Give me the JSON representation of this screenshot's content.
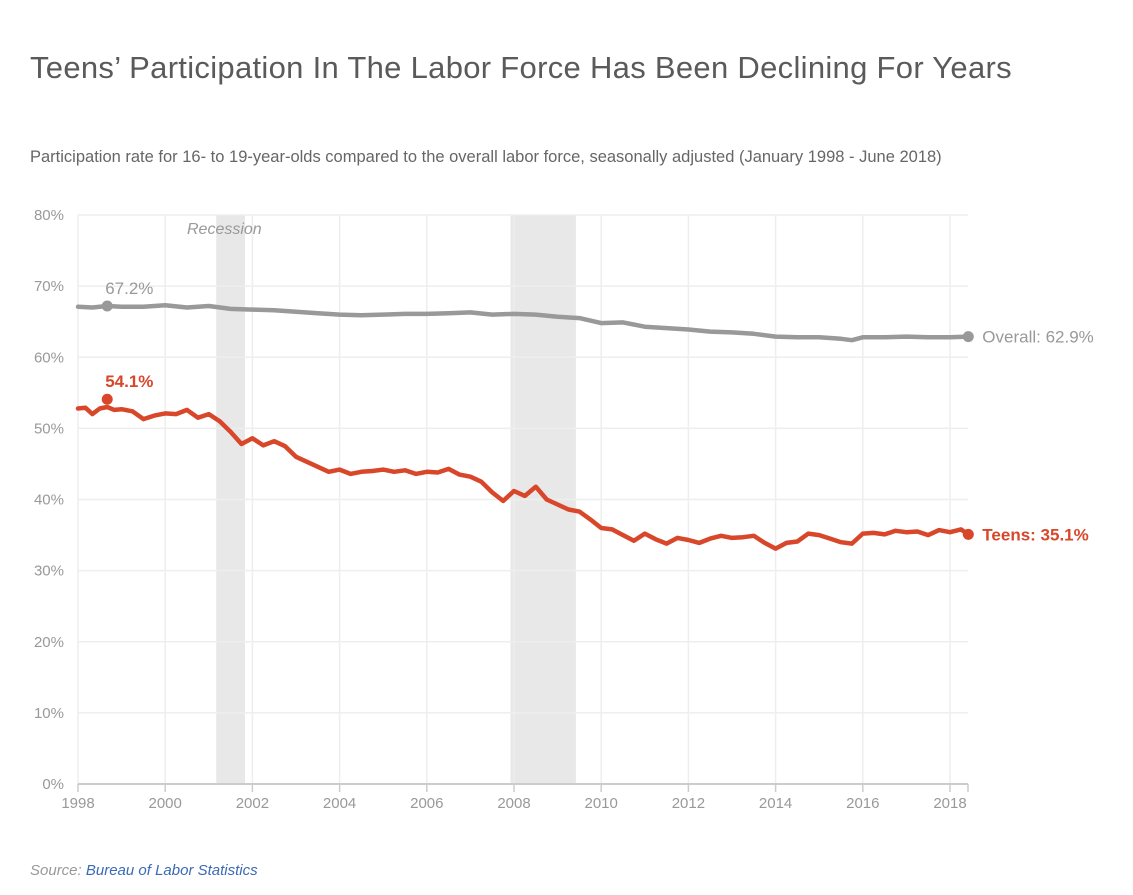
{
  "header": {
    "title": "Teens’ Participation In The Labor Force Has Been Declining For Years",
    "subtitle": "Participation rate for 16- to 19-year-olds compared to the overall labor force, seasonally adjusted (January 1998 - June 2018)"
  },
  "footer": {
    "source_prefix": "Source:",
    "source_link": "Bureau of Labor Statistics"
  },
  "colors": {
    "teens": "#d9472b",
    "overall": "#999999",
    "recession": "#e8e8e8",
    "grid": "#eeeeee",
    "axis": "#cccccc"
  },
  "chart_data": {
    "type": "line",
    "title": "Teens’ Participation In The Labor Force Has Been Declining For Years",
    "xlabel": "",
    "ylabel": "",
    "xlim": [
      1998,
      2018.42
    ],
    "ylim": [
      0,
      80
    ],
    "grid": true,
    "x_ticks": [
      1998,
      2000,
      2002,
      2004,
      2006,
      2008,
      2010,
      2012,
      2014,
      2016,
      2018
    ],
    "x_tick_labels": [
      "1998",
      "2000",
      "2002",
      "2004",
      "2006",
      "2008",
      "2010",
      "2012",
      "2014",
      "2016",
      "2018"
    ],
    "y_ticks": [
      0,
      10,
      20,
      30,
      40,
      50,
      60,
      70,
      80
    ],
    "y_tick_labels": [
      "0%",
      "10%",
      "20%",
      "30%",
      "40%",
      "50%",
      "60%",
      "70%",
      "80%"
    ],
    "recessions": [
      {
        "start": 2001.17,
        "end": 2001.83
      },
      {
        "start": 2007.92,
        "end": 2009.42
      }
    ],
    "recession_label": "Recession",
    "series": [
      {
        "name": "Overall",
        "key": "overall",
        "end_label": "Overall: 62.9%",
        "peak_label": "67.2%",
        "peak": {
          "x": 1998.67,
          "y": 67.2
        },
        "end": {
          "x": 2018.42,
          "y": 62.9
        },
        "x": [
          1998.0,
          1998.33,
          1998.67,
          1999.0,
          1999.5,
          2000.0,
          2000.5,
          2001.0,
          2001.5,
          2002.0,
          2002.5,
          2003.0,
          2003.5,
          2004.0,
          2004.5,
          2005.0,
          2005.5,
          2006.0,
          2006.5,
          2007.0,
          2007.5,
          2008.0,
          2008.5,
          2009.0,
          2009.5,
          2010.0,
          2010.5,
          2011.0,
          2011.5,
          2012.0,
          2012.5,
          2013.0,
          2013.5,
          2014.0,
          2014.5,
          2015.0,
          2015.5,
          2015.75,
          2016.0,
          2016.5,
          2017.0,
          2017.5,
          2018.0,
          2018.42
        ],
        "values": [
          67.1,
          67.0,
          67.2,
          67.1,
          67.1,
          67.3,
          67.0,
          67.2,
          66.8,
          66.7,
          66.6,
          66.4,
          66.2,
          66.0,
          65.9,
          66.0,
          66.1,
          66.1,
          66.2,
          66.3,
          66.0,
          66.1,
          66.0,
          65.7,
          65.5,
          64.8,
          64.9,
          64.3,
          64.1,
          63.9,
          63.6,
          63.5,
          63.3,
          62.9,
          62.8,
          62.8,
          62.6,
          62.4,
          62.8,
          62.8,
          62.9,
          62.8,
          62.8,
          62.9
        ]
      },
      {
        "name": "Teens",
        "key": "teens",
        "end_label": "Teens: 35.1%",
        "peak_label": "54.1%",
        "peak": {
          "x": 1998.67,
          "y": 54.1
        },
        "end": {
          "x": 2018.42,
          "y": 35.1
        },
        "x": [
          1998.0,
          1998.17,
          1998.33,
          1998.5,
          1998.67,
          1998.83,
          1999.0,
          1999.25,
          1999.5,
          1999.75,
          2000.0,
          2000.25,
          2000.5,
          2000.75,
          2001.0,
          2001.25,
          2001.5,
          2001.75,
          2002.0,
          2002.25,
          2002.5,
          2002.75,
          2003.0,
          2003.25,
          2003.5,
          2003.75,
          2004.0,
          2004.25,
          2004.5,
          2004.75,
          2005.0,
          2005.25,
          2005.5,
          2005.75,
          2006.0,
          2006.25,
          2006.5,
          2006.75,
          2007.0,
          2007.25,
          2007.5,
          2007.75,
          2008.0,
          2008.25,
          2008.5,
          2008.75,
          2009.0,
          2009.25,
          2009.5,
          2009.75,
          2010.0,
          2010.25,
          2010.5,
          2010.75,
          2011.0,
          2011.25,
          2011.5,
          2011.75,
          2012.0,
          2012.25,
          2012.5,
          2012.75,
          2013.0,
          2013.25,
          2013.5,
          2013.75,
          2014.0,
          2014.25,
          2014.5,
          2014.75,
          2015.0,
          2015.25,
          2015.5,
          2015.75,
          2016.0,
          2016.25,
          2016.5,
          2016.75,
          2017.0,
          2017.25,
          2017.5,
          2017.75,
          2018.0,
          2018.25,
          2018.42
        ],
        "values": [
          52.8,
          52.9,
          52.0,
          52.8,
          53.0,
          52.6,
          52.7,
          52.4,
          51.3,
          51.8,
          52.1,
          52.0,
          52.6,
          51.5,
          52.0,
          51.0,
          49.5,
          47.8,
          48.6,
          47.6,
          48.2,
          47.5,
          46.0,
          45.3,
          44.6,
          43.9,
          44.2,
          43.6,
          43.9,
          44.0,
          44.2,
          43.9,
          44.1,
          43.6,
          43.9,
          43.8,
          44.3,
          43.5,
          43.2,
          42.5,
          41.0,
          39.8,
          41.2,
          40.5,
          41.8,
          40.0,
          39.3,
          38.6,
          38.3,
          37.2,
          36.0,
          35.8,
          35.0,
          34.2,
          35.2,
          34.4,
          33.8,
          34.6,
          34.3,
          33.9,
          34.5,
          34.9,
          34.6,
          34.7,
          34.9,
          33.9,
          33.1,
          33.9,
          34.1,
          35.2,
          35.0,
          34.5,
          34.0,
          33.8,
          35.2,
          35.3,
          35.1,
          35.6,
          35.4,
          35.5,
          35.0,
          35.7,
          35.4,
          35.8,
          35.1
        ]
      }
    ],
    "legend": "inline-end-labels"
  }
}
